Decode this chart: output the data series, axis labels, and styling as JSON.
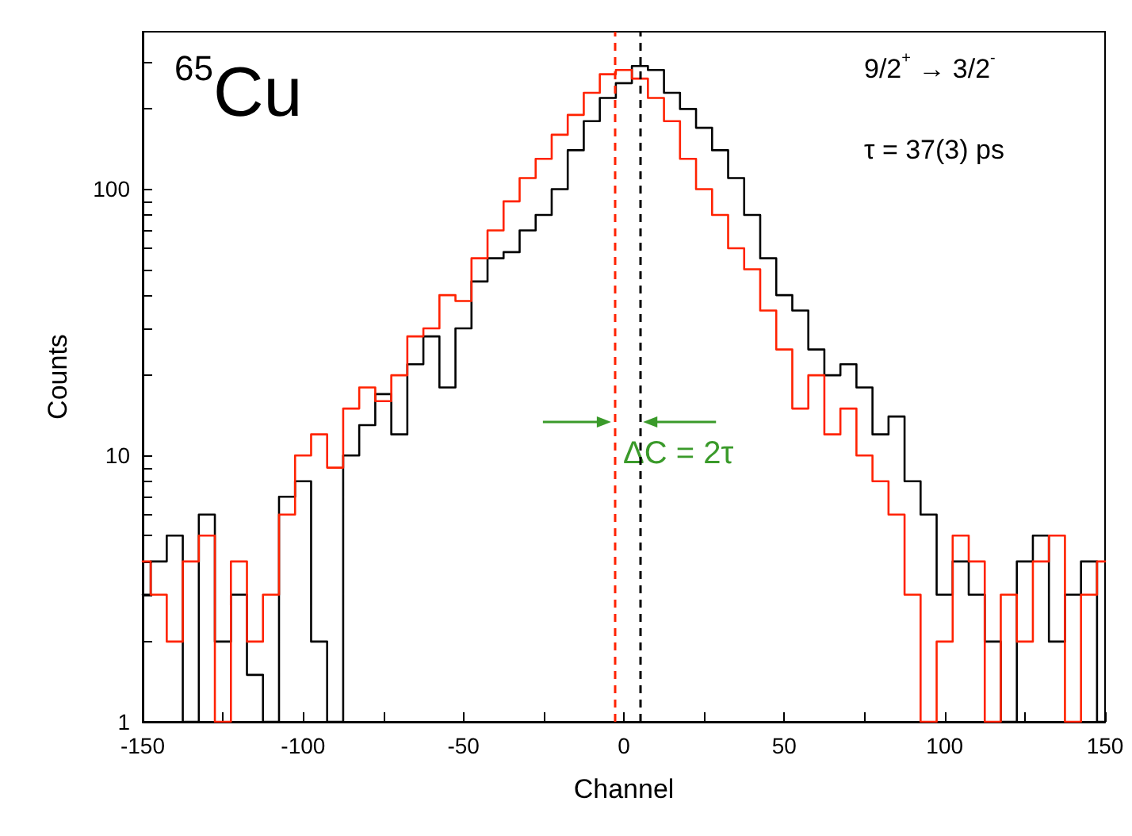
{
  "chart_data": {
    "type": "step",
    "xlabel": "Channel",
    "ylabel": "Counts",
    "annotations": [
      "$^{65}$Cu",
      "9/2$^{+}$ → 3/2$^{-}$",
      "τ = 37(3) ps",
      "ΔC = 2τ"
    ],
    "x": [
      -150,
      -145,
      -140,
      -135,
      -130,
      -125,
      -120,
      -115,
      -110,
      -105,
      -100,
      -95,
      -90,
      -85,
      -80,
      -75,
      -70,
      -65,
      -60,
      -55,
      -50,
      -45,
      -40,
      -35,
      -30,
      -25,
      -20,
      -15,
      -10,
      -5,
      0,
      5,
      10,
      15,
      20,
      25,
      30,
      35,
      40,
      45,
      50,
      55,
      60,
      65,
      70,
      75,
      80,
      85,
      90,
      95,
      100,
      105,
      110,
      115,
      120,
      125,
      130,
      135,
      140,
      145,
      150
    ],
    "series": [
      {
        "color": "#000000",
        "values": [
          3,
          4,
          5,
          1,
          6,
          2,
          3,
          1.5,
          1,
          7,
          8,
          2,
          1,
          10,
          13,
          17,
          12,
          22,
          28,
          18,
          30,
          45,
          55,
          58,
          70,
          80,
          100,
          140,
          180,
          220,
          250,
          290,
          280,
          230,
          200,
          170,
          140,
          110,
          80,
          55,
          40,
          35,
          25,
          20,
          22,
          18,
          12,
          14,
          8,
          6,
          3,
          4,
          3,
          2,
          1,
          4,
          5,
          2,
          3,
          4,
          1
        ]
      },
      {
        "color": "#ff2200",
        "values": [
          4,
          3,
          2,
          4,
          5,
          1,
          4,
          2,
          3,
          6,
          10,
          12,
          9,
          15,
          18,
          16,
          20,
          28,
          30,
          40,
          38,
          55,
          70,
          90,
          110,
          130,
          160,
          190,
          230,
          270,
          280,
          260,
          220,
          180,
          130,
          100,
          80,
          60,
          50,
          35,
          25,
          15,
          20,
          12,
          15,
          10,
          8,
          6,
          3,
          1,
          2,
          5,
          4,
          1,
          3,
          2,
          4,
          5,
          1,
          3,
          4
        ]
      }
    ],
    "xlim": [
      -150,
      150
    ],
    "xticks": [
      -150,
      {
        "value": -125,
        "label": null
      },
      -100,
      {
        "value": -75,
        "label": null
      },
      -50,
      {
        "value": -25,
        "label": null
      },
      0,
      {
        "value": 25,
        "label": null
      },
      50,
      {
        "value": 75,
        "label": null
      },
      100,
      {
        "value": 125,
        "label": null
      },
      150
    ],
    "ylim": [
      1,
      390
    ],
    "yticks": [
      1,
      {
        "value": 2,
        "label": null
      },
      {
        "value": 3,
        "label": null
      },
      {
        "value": 4,
        "label": null
      },
      {
        "value": 5,
        "label": null
      },
      {
        "value": 6,
        "label": null
      },
      {
        "value": 7,
        "label": null
      },
      {
        "value": 8,
        "label": null
      },
      {
        "value": 9,
        "label": null
      },
      10,
      {
        "value": 20,
        "label": null
      },
      {
        "value": 30,
        "label": null
      },
      {
        "value": 40,
        "label": null
      },
      {
        "value": 50,
        "label": null
      },
      {
        "value": 60,
        "label": null
      },
      {
        "value": 70,
        "label": null
      },
      {
        "value": 80,
        "label": null
      },
      {
        "value": 90,
        "label": null
      },
      100,
      {
        "value": 200,
        "label": null
      },
      {
        "value": 300,
        "label": null
      }
    ],
    "log": "y",
    "grid": false,
    "marker": "none",
    "line_style": "solid",
    "ref_lines": [
      {
        "axis": "x",
        "value": -3,
        "color": "#ff2200",
        "line_style": "dashed"
      },
      {
        "axis": "x",
        "value": 5,
        "color": "#000000",
        "line_style": "dashed"
      }
    ]
  }
}
